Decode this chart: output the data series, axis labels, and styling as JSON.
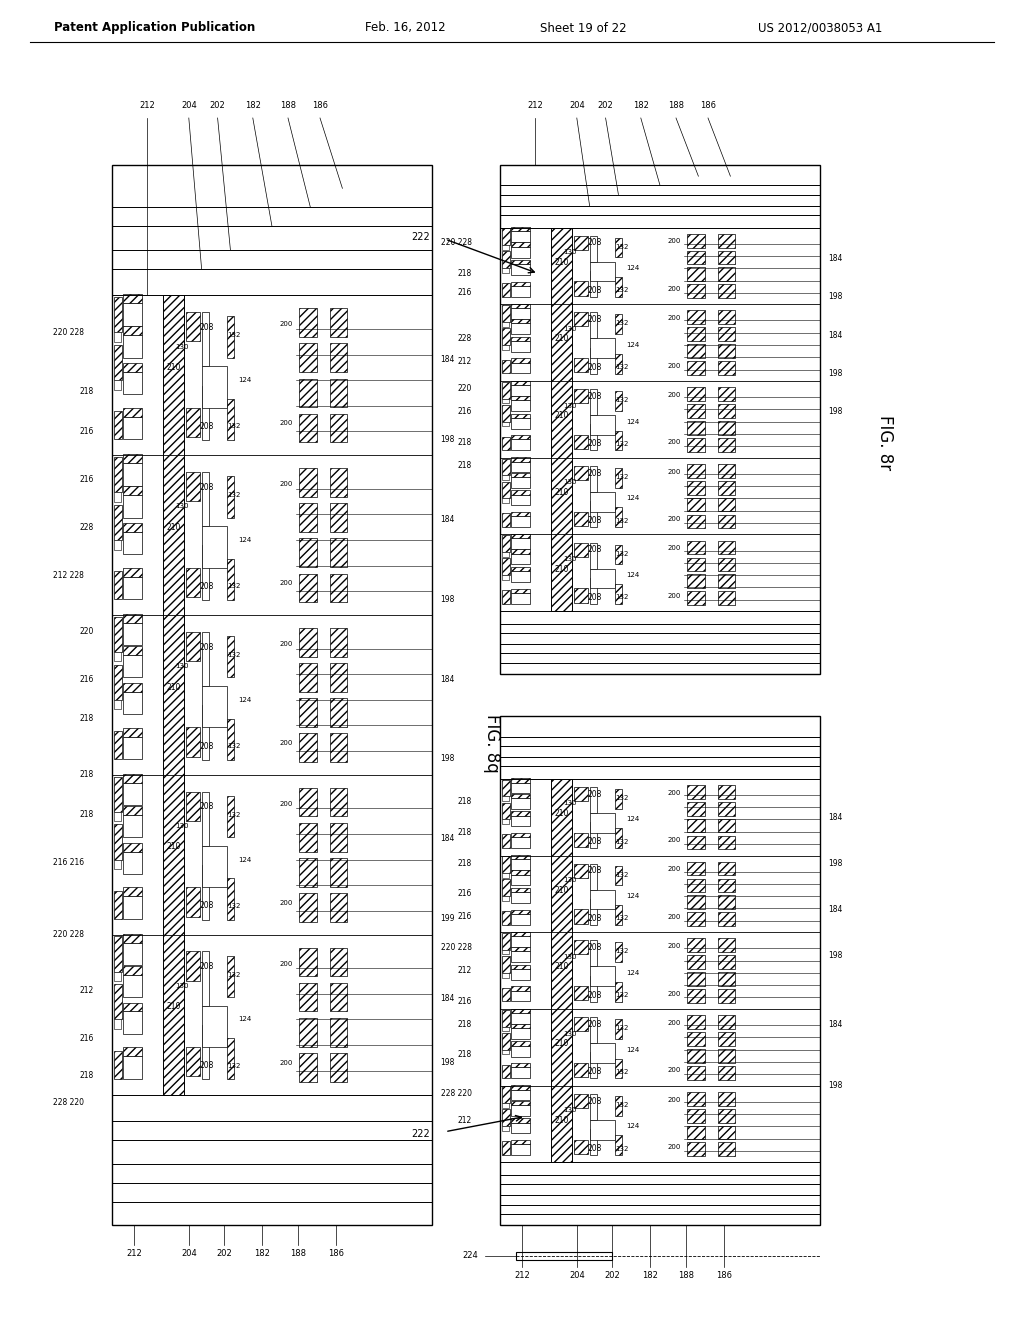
{
  "bg_color": "#ffffff",
  "header_text": "Patent Application Publication",
  "header_date": "Feb. 16, 2012",
  "header_sheet": "Sheet 19 of 22",
  "header_patent": "US 2012/0038053 A1",
  "fig_8q_label": "FIG. 8q",
  "fig_8r_label": "FIG. 8r"
}
